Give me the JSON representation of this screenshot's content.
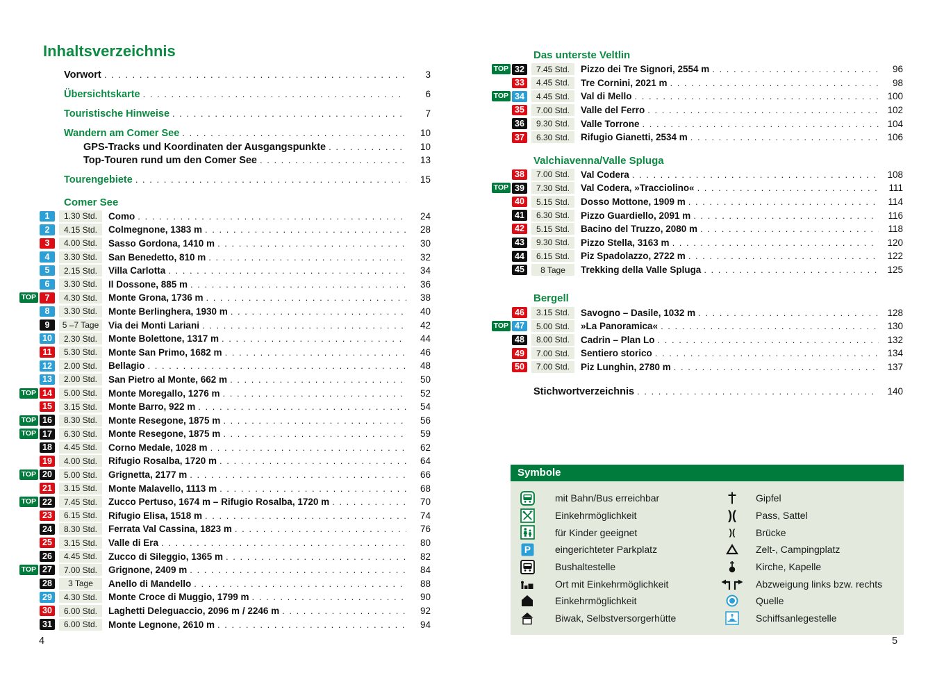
{
  "labels": {
    "top_badge": "TOP"
  },
  "colors": {
    "green": "#0e8a44",
    "green_dark": "#007b3c",
    "badge_blue": "#2b9fd6",
    "badge_red": "#dc0d15",
    "badge_black": "#101010",
    "time_bg": "#e9ede2",
    "symbols_bg": "#e3e9dc"
  },
  "page_left": {
    "title": "Inhaltsverzeichnis",
    "page_number": "4",
    "front_items": [
      {
        "label": "Vorwort",
        "page": "3",
        "color": "black",
        "sub": false
      },
      {
        "label": "Übersichtskarte",
        "page": "6",
        "color": "green",
        "sub": false
      },
      {
        "label": "Touristische Hinweise",
        "page": "7",
        "color": "green",
        "sub": false
      },
      {
        "label": "Wandern am Comer See",
        "page": "10",
        "color": "green",
        "sub": false
      },
      {
        "label": "GPS-Tracks und Koordinaten der Ausgangspunkte",
        "page": "10",
        "color": "black",
        "sub": true
      },
      {
        "label": "Top-Touren rund um den Comer See",
        "page": "13",
        "color": "black",
        "sub": true
      },
      {
        "label": "Tourengebiete",
        "page": "15",
        "color": "green",
        "sub": false
      }
    ],
    "sections": [
      {
        "title": "Comer See",
        "tours": [
          {
            "top": false,
            "num": "1",
            "badge": "blue",
            "time": "1.30 Std.",
            "name": "Como",
            "page": "24"
          },
          {
            "top": false,
            "num": "2",
            "badge": "blue",
            "time": "4.15 Std.",
            "name": "Colmegnone, 1383 m",
            "page": "28"
          },
          {
            "top": false,
            "num": "3",
            "badge": "red",
            "time": "4.00 Std.",
            "name": "Sasso Gordona, 1410 m",
            "page": "30"
          },
          {
            "top": false,
            "num": "4",
            "badge": "blue",
            "time": "3.30 Std.",
            "name": "San Benedetto, 810 m",
            "page": "32"
          },
          {
            "top": false,
            "num": "5",
            "badge": "blue",
            "time": "2.15 Std.",
            "name": "Villa Carlotta",
            "page": "34"
          },
          {
            "top": false,
            "num": "6",
            "badge": "blue",
            "time": "3.30 Std.",
            "name": "Il Dossone, 885 m",
            "page": "36"
          },
          {
            "top": true,
            "num": "7",
            "badge": "red",
            "time": "4.30 Std.",
            "name": "Monte Grona, 1736 m",
            "page": "38"
          },
          {
            "top": false,
            "num": "8",
            "badge": "blue",
            "time": "3.30 Std.",
            "name": "Monte Berlinghera, 1930 m",
            "page": "40"
          },
          {
            "top": false,
            "num": "9",
            "badge": "black",
            "time": "5 –7 Tage",
            "name": "Via dei Monti Lariani",
            "page": "42"
          },
          {
            "top": false,
            "num": "10",
            "badge": "blue",
            "time": "2.30 Std.",
            "name": "Monte Bolettone, 1317 m",
            "page": "44"
          },
          {
            "top": false,
            "num": "11",
            "badge": "red",
            "time": "5.30 Std.",
            "name": "Monte San Primo, 1682 m",
            "page": "46"
          },
          {
            "top": false,
            "num": "12",
            "badge": "blue",
            "time": "2.00 Std.",
            "name": "Bellagio",
            "page": "48"
          },
          {
            "top": false,
            "num": "13",
            "badge": "blue",
            "time": "2.00 Std.",
            "name": "San Pietro al Monte, 662 m",
            "page": "50"
          },
          {
            "top": true,
            "num": "14",
            "badge": "red",
            "time": "5.00 Std.",
            "name": "Monte Moregallo, 1276 m",
            "page": "52"
          },
          {
            "top": false,
            "num": "15",
            "badge": "red",
            "time": "3.15 Std.",
            "name": "Monte Barro, 922 m",
            "page": "54"
          },
          {
            "top": true,
            "num": "16",
            "badge": "black",
            "time": "8.30 Std.",
            "name": "Monte Resegone, 1875 m",
            "page": "56"
          },
          {
            "top": true,
            "num": "17",
            "badge": "black",
            "time": "6.30 Std.",
            "name": "Monte Resegone, 1875 m",
            "page": "59"
          },
          {
            "top": false,
            "num": "18",
            "badge": "black",
            "time": "4.45 Std.",
            "name": "Corno Medale, 1028 m",
            "page": "62"
          },
          {
            "top": false,
            "num": "19",
            "badge": "red",
            "time": "4.00 Std.",
            "name": "Rifugio Rosalba, 1720 m",
            "page": "64"
          },
          {
            "top": true,
            "num": "20",
            "badge": "black",
            "time": "5.00 Std.",
            "name": "Grignetta, 2177 m",
            "page": "66"
          },
          {
            "top": false,
            "num": "21",
            "badge": "red",
            "time": "3.15 Std.",
            "name": "Monte Malavello, 1113 m",
            "page": "68"
          },
          {
            "top": true,
            "num": "22",
            "badge": "black",
            "time": "7.45 Std.",
            "name": "Zucco Pertuso, 1674 m – Rifugio Rosalba, 1720 m",
            "page": "70"
          },
          {
            "top": false,
            "num": "23",
            "badge": "red",
            "time": "6.15 Std.",
            "name": "Rifugio Elisa, 1518 m",
            "page": "74"
          },
          {
            "top": false,
            "num": "24",
            "badge": "black",
            "time": "8.30 Std.",
            "name": "Ferrata Val Cassina, 1823 m",
            "page": "76"
          },
          {
            "top": false,
            "num": "25",
            "badge": "red",
            "time": "3.15 Std.",
            "name": "Valle di Era",
            "page": "80"
          },
          {
            "top": false,
            "num": "26",
            "badge": "black",
            "time": "4.45 Std.",
            "name": "Zucco di Sileggio, 1365 m",
            "page": "82"
          },
          {
            "top": true,
            "num": "27",
            "badge": "black",
            "time": "7.00 Std.",
            "name": "Grignone, 2409 m",
            "page": "84"
          },
          {
            "top": false,
            "num": "28",
            "badge": "black",
            "time": "3 Tage",
            "name": "Anello di Mandello",
            "page": "88"
          },
          {
            "top": false,
            "num": "29",
            "badge": "blue",
            "time": "4.30 Std.",
            "name": "Monte Croce di Muggio, 1799 m",
            "page": "90"
          },
          {
            "top": false,
            "num": "30",
            "badge": "red",
            "time": "6.00 Std.",
            "name": "Laghetti Deleguaccio, 2096 m / 2246 m",
            "page": "92"
          },
          {
            "top": false,
            "num": "31",
            "badge": "black",
            "time": "6.00 Std.",
            "name": "Monte Legnone, 2610 m",
            "page": "94"
          }
        ]
      }
    ]
  },
  "page_right": {
    "page_number": "5",
    "sections": [
      {
        "title": "Das unterste Veltlin",
        "tours": [
          {
            "top": true,
            "num": "32",
            "badge": "black",
            "time": "7.45 Std.",
            "name": "Pizzo dei Tre Signori, 2554 m",
            "page": "96"
          },
          {
            "top": false,
            "num": "33",
            "badge": "red",
            "time": "4.45 Std.",
            "name": "Tre Cornini, 2021 m",
            "page": "98"
          },
          {
            "top": true,
            "num": "34",
            "badge": "blue",
            "time": "4.45 Std.",
            "name": "Val di Mello",
            "page": "100"
          },
          {
            "top": false,
            "num": "35",
            "badge": "red",
            "time": "7.00 Std.",
            "name": "Valle del Ferro",
            "page": "102"
          },
          {
            "top": false,
            "num": "36",
            "badge": "black",
            "time": "9.30 Std.",
            "name": "Valle Torrone",
            "page": "104"
          },
          {
            "top": false,
            "num": "37",
            "badge": "red",
            "time": "6.30 Std.",
            "name": "Rifugio Gianetti, 2534 m",
            "page": "106"
          }
        ]
      },
      {
        "title": "Valchiavenna/Valle Spluga",
        "tours": [
          {
            "top": false,
            "num": "38",
            "badge": "red",
            "time": "7.00 Std.",
            "name": "Val Codera",
            "page": "108"
          },
          {
            "top": true,
            "num": "39",
            "badge": "black",
            "time": "7.30 Std.",
            "name": "Val Codera, »Tracciolino«",
            "page": "111"
          },
          {
            "top": false,
            "num": "40",
            "badge": "red",
            "time": "5.15 Std.",
            "name": "Dosso Mottone, 1909 m",
            "page": "114"
          },
          {
            "top": false,
            "num": "41",
            "badge": "black",
            "time": "6.30 Std.",
            "name": "Pizzo Guardiello, 2091 m",
            "page": "116"
          },
          {
            "top": false,
            "num": "42",
            "badge": "red",
            "time": "5.15 Std.",
            "name": "Bacino del Truzzo, 2080 m",
            "page": "118"
          },
          {
            "top": false,
            "num": "43",
            "badge": "black",
            "time": "9.30 Std.",
            "name": "Pizzo Stella, 3163 m",
            "page": "120"
          },
          {
            "top": false,
            "num": "44",
            "badge": "black",
            "time": "6.15 Std.",
            "name": "Piz Spadolazzo, 2722 m",
            "page": "122"
          },
          {
            "top": false,
            "num": "45",
            "badge": "black",
            "time": "8 Tage",
            "name": "Trekking della Valle Spluga",
            "page": "125"
          }
        ]
      },
      {
        "title": "Bergell",
        "tours": [
          {
            "top": false,
            "num": "46",
            "badge": "red",
            "time": "3.15 Std.",
            "name": "Savogno – Dasile, 1032 m",
            "page": "128"
          },
          {
            "top": true,
            "num": "47",
            "badge": "blue",
            "time": "5.00 Std.",
            "name": "»La Panoramica«",
            "page": "130"
          },
          {
            "top": false,
            "num": "48",
            "badge": "black",
            "time": "8.00 Std.",
            "name": "Cadrin – Plan Lo",
            "page": "132"
          },
          {
            "top": false,
            "num": "49",
            "badge": "red",
            "time": "7.00 Std.",
            "name": "Sentiero storico",
            "page": "134"
          },
          {
            "top": false,
            "num": "50",
            "badge": "red",
            "time": "7.00 Std.",
            "name": "Piz Lunghin, 2780 m",
            "page": "137"
          }
        ]
      }
    ],
    "index_item": {
      "label": "Stichwortverzeichnis",
      "page": "140"
    }
  },
  "symbols": {
    "title": "Symbole",
    "left": [
      {
        "icon": "train-bus-icon",
        "label": "mit Bahn/Bus erreichbar"
      },
      {
        "icon": "restaurant-icon",
        "label": "Einkehrmöglichkeit"
      },
      {
        "icon": "children-icon",
        "label": "für Kinder geeignet"
      },
      {
        "icon": "parking-icon",
        "label": "eingerichteter Parkplatz"
      },
      {
        "icon": "bus-stop-icon",
        "label": "Bushaltestelle"
      },
      {
        "icon": "village-icon",
        "label": "Ort mit Einkehrmöglichkeit"
      },
      {
        "icon": "hut-icon",
        "label": "Einkehrmöglichkeit"
      },
      {
        "icon": "bivouac-icon",
        "label": "Biwak, Selbstversorgerhütte"
      }
    ],
    "right": [
      {
        "icon": "summit-cross-icon",
        "label": "Gipfel"
      },
      {
        "icon": "pass-icon",
        "label": "Pass, Sattel"
      },
      {
        "icon": "bridge-icon",
        "label": "Brücke"
      },
      {
        "icon": "camping-icon",
        "label": "Zelt-, Campingplatz"
      },
      {
        "icon": "church-icon",
        "label": "Kirche, Kapelle"
      },
      {
        "icon": "turn-arrows-icon",
        "label": "Abzweigung links bzw. rechts"
      },
      {
        "icon": "spring-icon",
        "label": "Quelle"
      },
      {
        "icon": "pier-icon",
        "label": "Schiffsanlegestelle"
      }
    ]
  }
}
